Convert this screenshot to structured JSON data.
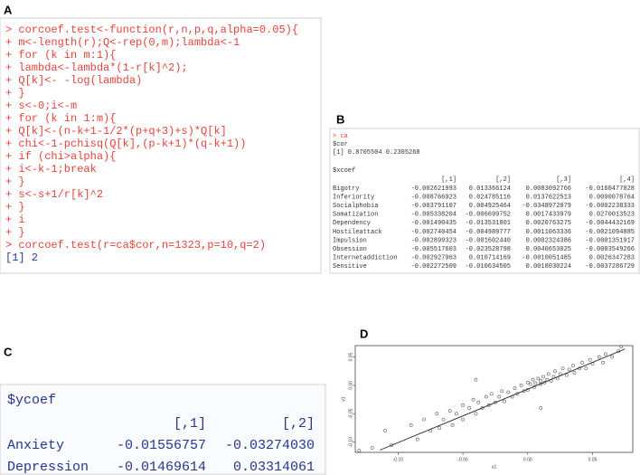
{
  "panels": {
    "a": {
      "label": "A",
      "lines": [
        "> corcoef.test<-function(r,n,p,q,alpha=0.05){",
        "+  m<-length(r);Q<-rep(0,m);lambda<-1",
        "+  for (k in m:1){",
        "+    lambda<-lambda*(1-r[k]^2);",
        "+    Q[k]<- -log(lambda)",
        "+  }",
        "+  s<-0;i<-m",
        "+  for (k in 1:m){",
        "+    Q[k]<-(n-k+1-1/2*(p+q+3)+s)*Q[k]",
        "+    chi<-1-pchisq(Q[k],(p-k+1)*(q-k+1))",
        "+    if (chi>alpha){",
        "+      i<-k-1;break",
        "+    }",
        "+    s<-s+1/r[k]^2",
        "+  }",
        "+  i",
        "+  }",
        ">  corcoef.test(r=ca$cor,n=1323,p=10,q=2)"
      ],
      "output": "[1] 2"
    },
    "b": {
      "label": "B",
      "command": "> ca",
      "cor_name": "$cor",
      "cor_values": "[1] 0.8705504 0.2305268",
      "table_name": "$xcoef",
      "header": [
        "[,1]",
        "[,2]",
        "[,3]",
        "[,4]"
      ],
      "rows": [
        [
          "Bigotry",
          "-0.002621993",
          "0.013366124",
          "0.0083092766",
          "-0.0160477028"
        ],
        [
          "Inferiority",
          "-0.008766923",
          "0.024785116",
          "0.0137622513",
          "0.0090078764"
        ],
        [
          "Socialphobia",
          "-0.003791107",
          "0.004925464",
          "-0.0348972079",
          "-0.0002238333"
        ],
        [
          "Somatization",
          "-0.005338204",
          "-0.006699752",
          "0.0017433979",
          "0.0270013523"
        ],
        [
          "Dependency",
          "-0.001490435",
          "-0.013531801",
          "0.0020763275",
          "-0.0044432169"
        ],
        [
          "Hostileattack",
          "-0.002740454",
          "-0.004989777",
          "0.0011063336",
          "-0.0021094885"
        ],
        [
          "Impulsion",
          "-0.002899323",
          "-0.001602440",
          "0.0002324386",
          "-0.0001351917"
        ],
        [
          "Obsession",
          "-0.005517603",
          "-0.023528798",
          "0.0040653025",
          "-0.0083549266"
        ],
        [
          "Internetaddiction",
          "-0.002927963",
          "0.010714169",
          "-0.0010051485",
          "0.0026347283"
        ],
        [
          "Sensitive",
          "-0.002272509",
          "-0.010634505",
          "0.0018030224",
          "-0.0037286729"
        ]
      ]
    },
    "c": {
      "label": "C",
      "table_name": "$ycoef",
      "header": [
        "[,1]",
        "[,2]"
      ],
      "rows": [
        [
          "Anxiety",
          "-0.01556757",
          "-0.03274030"
        ],
        [
          "Depression",
          "-0.01469614",
          "0.03314061"
        ]
      ]
    },
    "d": {
      "label": "D"
    }
  },
  "chart_data": {
    "type": "scatter",
    "xlabel": "u1",
    "ylabel": "v1",
    "color": "#555555",
    "x": [
      -0.12,
      -0.11,
      -0.105,
      -0.09,
      -0.085,
      -0.08,
      -0.075,
      -0.07,
      -0.068,
      -0.065,
      -0.06,
      -0.058,
      -0.055,
      -0.05,
      -0.05,
      -0.045,
      -0.042,
      -0.04,
      -0.038,
      -0.035,
      -0.032,
      -0.03,
      -0.028,
      -0.025,
      -0.022,
      -0.02,
      -0.018,
      -0.015,
      -0.012,
      -0.01,
      -0.008,
      -0.005,
      -0.003,
      0.0,
      0.0,
      0.002,
      0.004,
      0.005,
      0.006,
      0.008,
      0.01,
      0.01,
      0.012,
      0.013,
      0.015,
      0.016,
      0.018,
      0.02,
      0.021,
      0.023,
      0.025,
      0.027,
      0.03,
      0.032,
      0.035,
      0.036,
      0.04,
      0.042,
      0.045,
      0.048,
      0.05,
      0.055,
      0.058,
      0.06,
      0.065,
      0.07,
      0.072,
      -0.04,
      0.01,
      -0.13
    ],
    "y": [
      -0.11,
      -0.08,
      -0.105,
      -0.07,
      -0.095,
      -0.06,
      -0.08,
      -0.05,
      -0.075,
      -0.06,
      -0.045,
      -0.07,
      -0.05,
      -0.035,
      -0.06,
      -0.04,
      -0.025,
      -0.05,
      -0.03,
      -0.04,
      -0.02,
      -0.035,
      -0.015,
      -0.03,
      -0.02,
      -0.01,
      -0.028,
      -0.012,
      -0.02,
      -0.005,
      -0.015,
      0.0,
      -0.01,
      0.005,
      -0.008,
      0.002,
      0.01,
      -0.003,
      0.004,
      0.012,
      0.002,
      0.008,
      0.015,
      0.005,
      0.01,
      0.02,
      0.008,
      0.015,
      0.025,
      0.012,
      0.02,
      0.03,
      0.018,
      0.028,
      0.035,
      0.022,
      0.03,
      0.04,
      0.03,
      0.045,
      0.038,
      0.05,
      0.04,
      0.055,
      0.05,
      0.06,
      0.068,
      0.01,
      -0.04,
      -0.115
    ],
    "fit_line": {
      "x": [
        -0.114,
        0.075
      ],
      "y": [
        -0.114,
        0.064
      ]
    },
    "xlim": [
      -0.133,
      0.081
    ],
    "ylim": [
      -0.118,
      0.07
    ],
    "xticks": [
      {
        "value": -0.1,
        "label": "-0.10"
      },
      {
        "value": -0.05,
        "label": "-0.05"
      },
      {
        "value": 0,
        "label": "0.00"
      },
      {
        "value": 0.05,
        "label": "0.05"
      }
    ],
    "yticks": [
      {
        "value": -0.1,
        "label": "-0.10"
      },
      {
        "value": -0.05,
        "label": "-0.05"
      },
      {
        "value": 0,
        "label": "0.00"
      },
      {
        "value": 0.05,
        "label": "0.05"
      }
    ]
  }
}
